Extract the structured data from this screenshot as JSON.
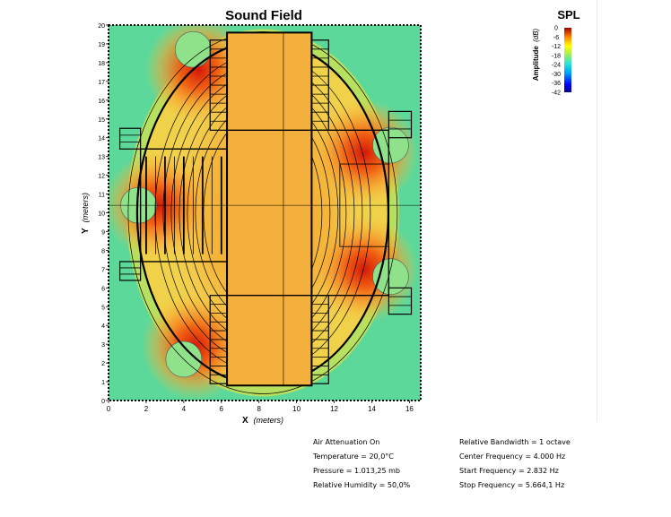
{
  "chart_data": {
    "type": "heatmap",
    "title": "Sound Field",
    "xlabel_main": "X",
    "xlabel_unit": "(meters)",
    "ylabel_main": "Y",
    "ylabel_unit": "(meters)",
    "xlim": [
      0,
      16.6
    ],
    "ylim": [
      0,
      20
    ],
    "x_ticks": [
      0,
      2,
      4,
      6,
      8,
      10,
      12,
      14,
      16
    ],
    "y_ticks": [
      0,
      1,
      2,
      3,
      4,
      5,
      6,
      7,
      8,
      9,
      10,
      11,
      12,
      13,
      14,
      15,
      16,
      17,
      18,
      19,
      20
    ],
    "colorbar": {
      "title": "SPL",
      "label_main": "Amplitude",
      "label_unit": "(dB)",
      "ticks": [
        0,
        -6,
        -12,
        -18,
        -24,
        -30,
        -36,
        -42
      ],
      "range": [
        -42,
        0
      ]
    },
    "hotspots": [
      {
        "x": 4.8,
        "y": 17.6,
        "level": -3
      },
      {
        "x": 2.6,
        "y": 10.4,
        "level": -2
      },
      {
        "x": 4.6,
        "y": 2.9,
        "level": -3
      },
      {
        "x": 13.6,
        "y": 13.2,
        "level": -2
      },
      {
        "x": 13.6,
        "y": 7.0,
        "level": -2
      }
    ],
    "colors": {
      "low": "#00008f",
      "mid": "#4fe0a8",
      "background": "#5cd89a",
      "high": "#d01a08"
    }
  },
  "info": {
    "left": [
      "Air Attenuation On",
      "Temperature = 20,0°C",
      "Pressure = 1.013,25  mb",
      "Relative Humidity = 50,0%"
    ],
    "right": [
      "Relative Bandwidth = 1 octave",
      "Center Frequency = 4.000 Hz",
      "Start Frequency = 2.832 Hz",
      "Stop Frequency = 5.664,1 Hz"
    ]
  }
}
